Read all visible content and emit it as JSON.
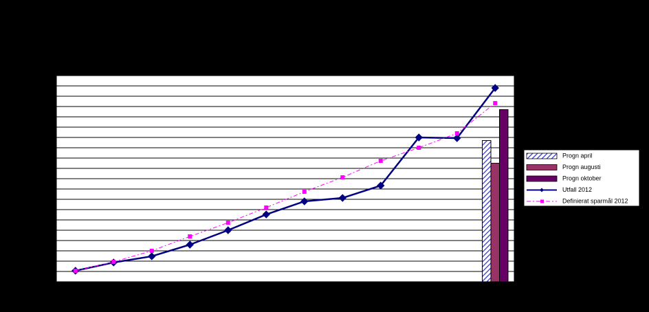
{
  "chart_data": {
    "type": "bar-line",
    "categories": [
      null,
      null,
      null,
      null,
      null,
      null,
      null,
      null,
      null,
      null,
      null,
      null
    ],
    "ylim": [
      0,
      20
    ],
    "yticks": [
      0,
      1,
      2,
      3,
      4,
      5,
      6,
      7,
      8,
      9,
      10,
      11,
      12,
      13,
      14,
      15,
      16,
      17,
      18,
      19,
      20
    ],
    "grid": true,
    "legend": "right",
    "series": [
      {
        "name": "Progn april",
        "type": "bar",
        "color": "#3333cc",
        "pattern": "hatch",
        "values": [
          null,
          null,
          null,
          null,
          null,
          null,
          null,
          null,
          null,
          null,
          null,
          13.7
        ]
      },
      {
        "name": "Progn augusti",
        "type": "bar",
        "color": "#993366",
        "values": [
          null,
          null,
          null,
          null,
          null,
          null,
          null,
          null,
          null,
          null,
          null,
          11.5
        ]
      },
      {
        "name": "Progn oktober",
        "type": "bar",
        "color": "#660066",
        "values": [
          null,
          null,
          null,
          null,
          null,
          null,
          null,
          null,
          null,
          null,
          null,
          16.7
        ]
      },
      {
        "name": "Utfall 2012",
        "type": "line",
        "color": "#000080",
        "marker": "diamond",
        "dash": false,
        "values": [
          1.07,
          1.87,
          2.47,
          3.6,
          5.0,
          6.53,
          7.8,
          8.13,
          9.33,
          14.0,
          13.93,
          18.8
        ]
      },
      {
        "name": "Definierat sparmål 2012",
        "type": "line",
        "color": "#ff00ff",
        "marker": "square",
        "dash": true,
        "values": [
          1.07,
          1.93,
          3.0,
          4.4,
          5.73,
          7.2,
          8.73,
          10.13,
          11.73,
          13.0,
          14.4,
          17.33
        ]
      }
    ]
  }
}
